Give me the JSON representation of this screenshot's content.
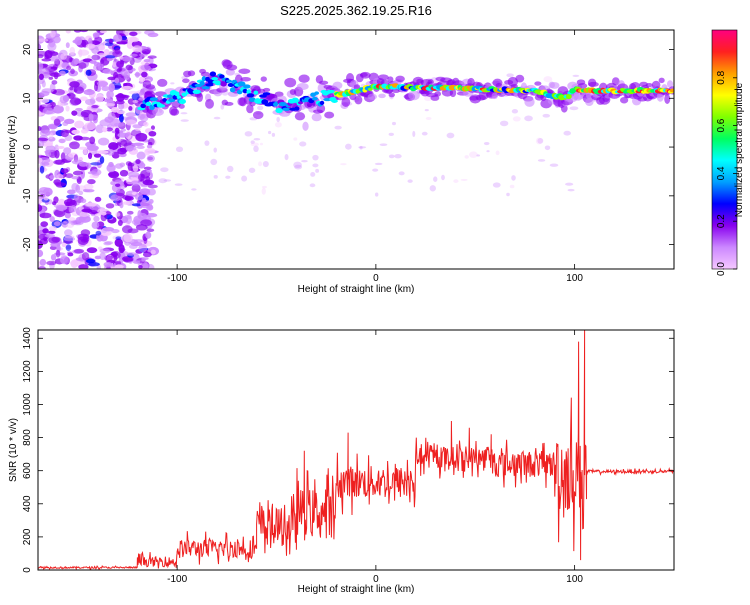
{
  "title": "S225.2025.362.19.25.R16",
  "chart_data": [
    {
      "type": "heatmap",
      "name": "spectrogram",
      "xlabel": "Height of straight line (km)",
      "ylabel": "Frequency (Hz)",
      "xlim": [
        -170,
        150
      ],
      "ylim": [
        -25,
        24
      ],
      "xticks": [
        -100,
        0,
        100
      ],
      "yticks": [
        -20,
        -10,
        0,
        10,
        20
      ],
      "ridge": {
        "x": [
          -118,
          -112,
          -106,
          -100,
          -94,
          -88,
          -82,
          -76,
          -70,
          -64,
          -58,
          -52,
          -46,
          -40,
          -34,
          -28,
          -22,
          -16,
          -10,
          -4,
          0,
          10,
          20,
          30,
          40,
          50,
          60,
          70,
          80,
          90,
          96,
          100,
          104,
          110,
          120,
          130,
          140,
          150
        ],
        "y": [
          8,
          9,
          10,
          10,
          11,
          13,
          14,
          13.5,
          12.5,
          11,
          10,
          9.5,
          8,
          9,
          9.5,
          10,
          10.5,
          11,
          11.5,
          12,
          12.3,
          12.4,
          12.2,
          12.3,
          12.1,
          12,
          11.8,
          11.6,
          11.5,
          10.5,
          10,
          12,
          11.5,
          11.5,
          11.5,
          11.5,
          11.5,
          11.5
        ]
      },
      "colorbar": {
        "label": "Normalized spectral amplitude",
        "ticks": [
          0.0,
          0.2,
          0.4,
          0.6,
          0.8
        ],
        "tick_labels": [
          "0.0",
          "0.2",
          "0.4",
          "0.6",
          "0.8"
        ],
        "colors": [
          "#f5c8ff",
          "#cc88ff",
          "#8800ee",
          "#0000ff",
          "#00a0ff",
          "#00ffff",
          "#00ff60",
          "#80ff00",
          "#ffff00",
          "#ffa000",
          "#ff2020",
          "#ff0080"
        ]
      }
    },
    {
      "type": "line",
      "name": "snr",
      "xlabel": "Height of straight line (km)",
      "ylabel": "SNR (10 * v/v)",
      "xlim": [
        -170,
        150
      ],
      "ylim": [
        0,
        1450
      ],
      "xticks": [
        -100,
        0,
        100
      ],
      "yticks": [
        0,
        200,
        400,
        600,
        800,
        1000,
        1200,
        1400
      ],
      "color": "#ee2020",
      "segments": [
        {
          "x0": -170,
          "x1": -120,
          "base": 15,
          "noise": 10
        },
        {
          "x0": -120,
          "x1": -100,
          "base": 50,
          "noise": 60
        },
        {
          "x0": -100,
          "x1": -60,
          "base": 130,
          "noise": 110
        },
        {
          "x0": -60,
          "x1": -40,
          "base": 260,
          "noise": 230
        },
        {
          "x0": -40,
          "x1": -20,
          "base": 350,
          "noise": 280
        },
        {
          "x0": -20,
          "x1": 20,
          "base": 530,
          "noise": 200
        },
        {
          "x0": 20,
          "x1": 60,
          "base": 680,
          "noise": 130
        },
        {
          "x0": 60,
          "x1": 90,
          "base": 640,
          "noise": 160
        },
        {
          "x0": 90,
          "x1": 106,
          "base": 600,
          "noise": 500
        },
        {
          "x0": 106,
          "x1": 150,
          "base": 595,
          "noise": 18
        }
      ],
      "spikes": [
        {
          "x": -100,
          "y": 110
        },
        {
          "x": -52,
          "y": 400
        },
        {
          "x": -36,
          "y": 720
        },
        {
          "x": -14,
          "y": 830
        },
        {
          "x": 38,
          "y": 900
        },
        {
          "x": 47,
          "y": 860
        },
        {
          "x": 58,
          "y": 820
        },
        {
          "x": 102,
          "y": 1380
        },
        {
          "x": 105,
          "y": 1450
        },
        {
          "x": 103,
          "y": 60
        }
      ]
    }
  ]
}
